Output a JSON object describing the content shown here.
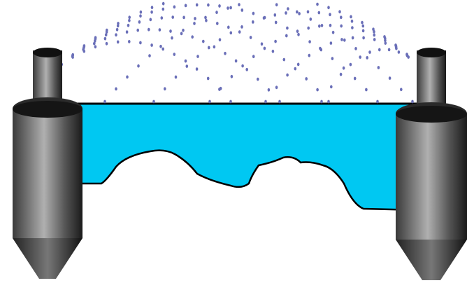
{
  "colors": {
    "background": "#ffffff",
    "water": "#00c8f2",
    "outline": "#000000",
    "droplet": "#6a6fb8",
    "tank_dark": "#1c1c1c",
    "tank_light": "#a8a8a8"
  },
  "icons": {
    "left_tower": "cylinder-tank-icon",
    "right_tower": "cylinder-tank-icon",
    "spray": "droplet-spray-icon"
  }
}
